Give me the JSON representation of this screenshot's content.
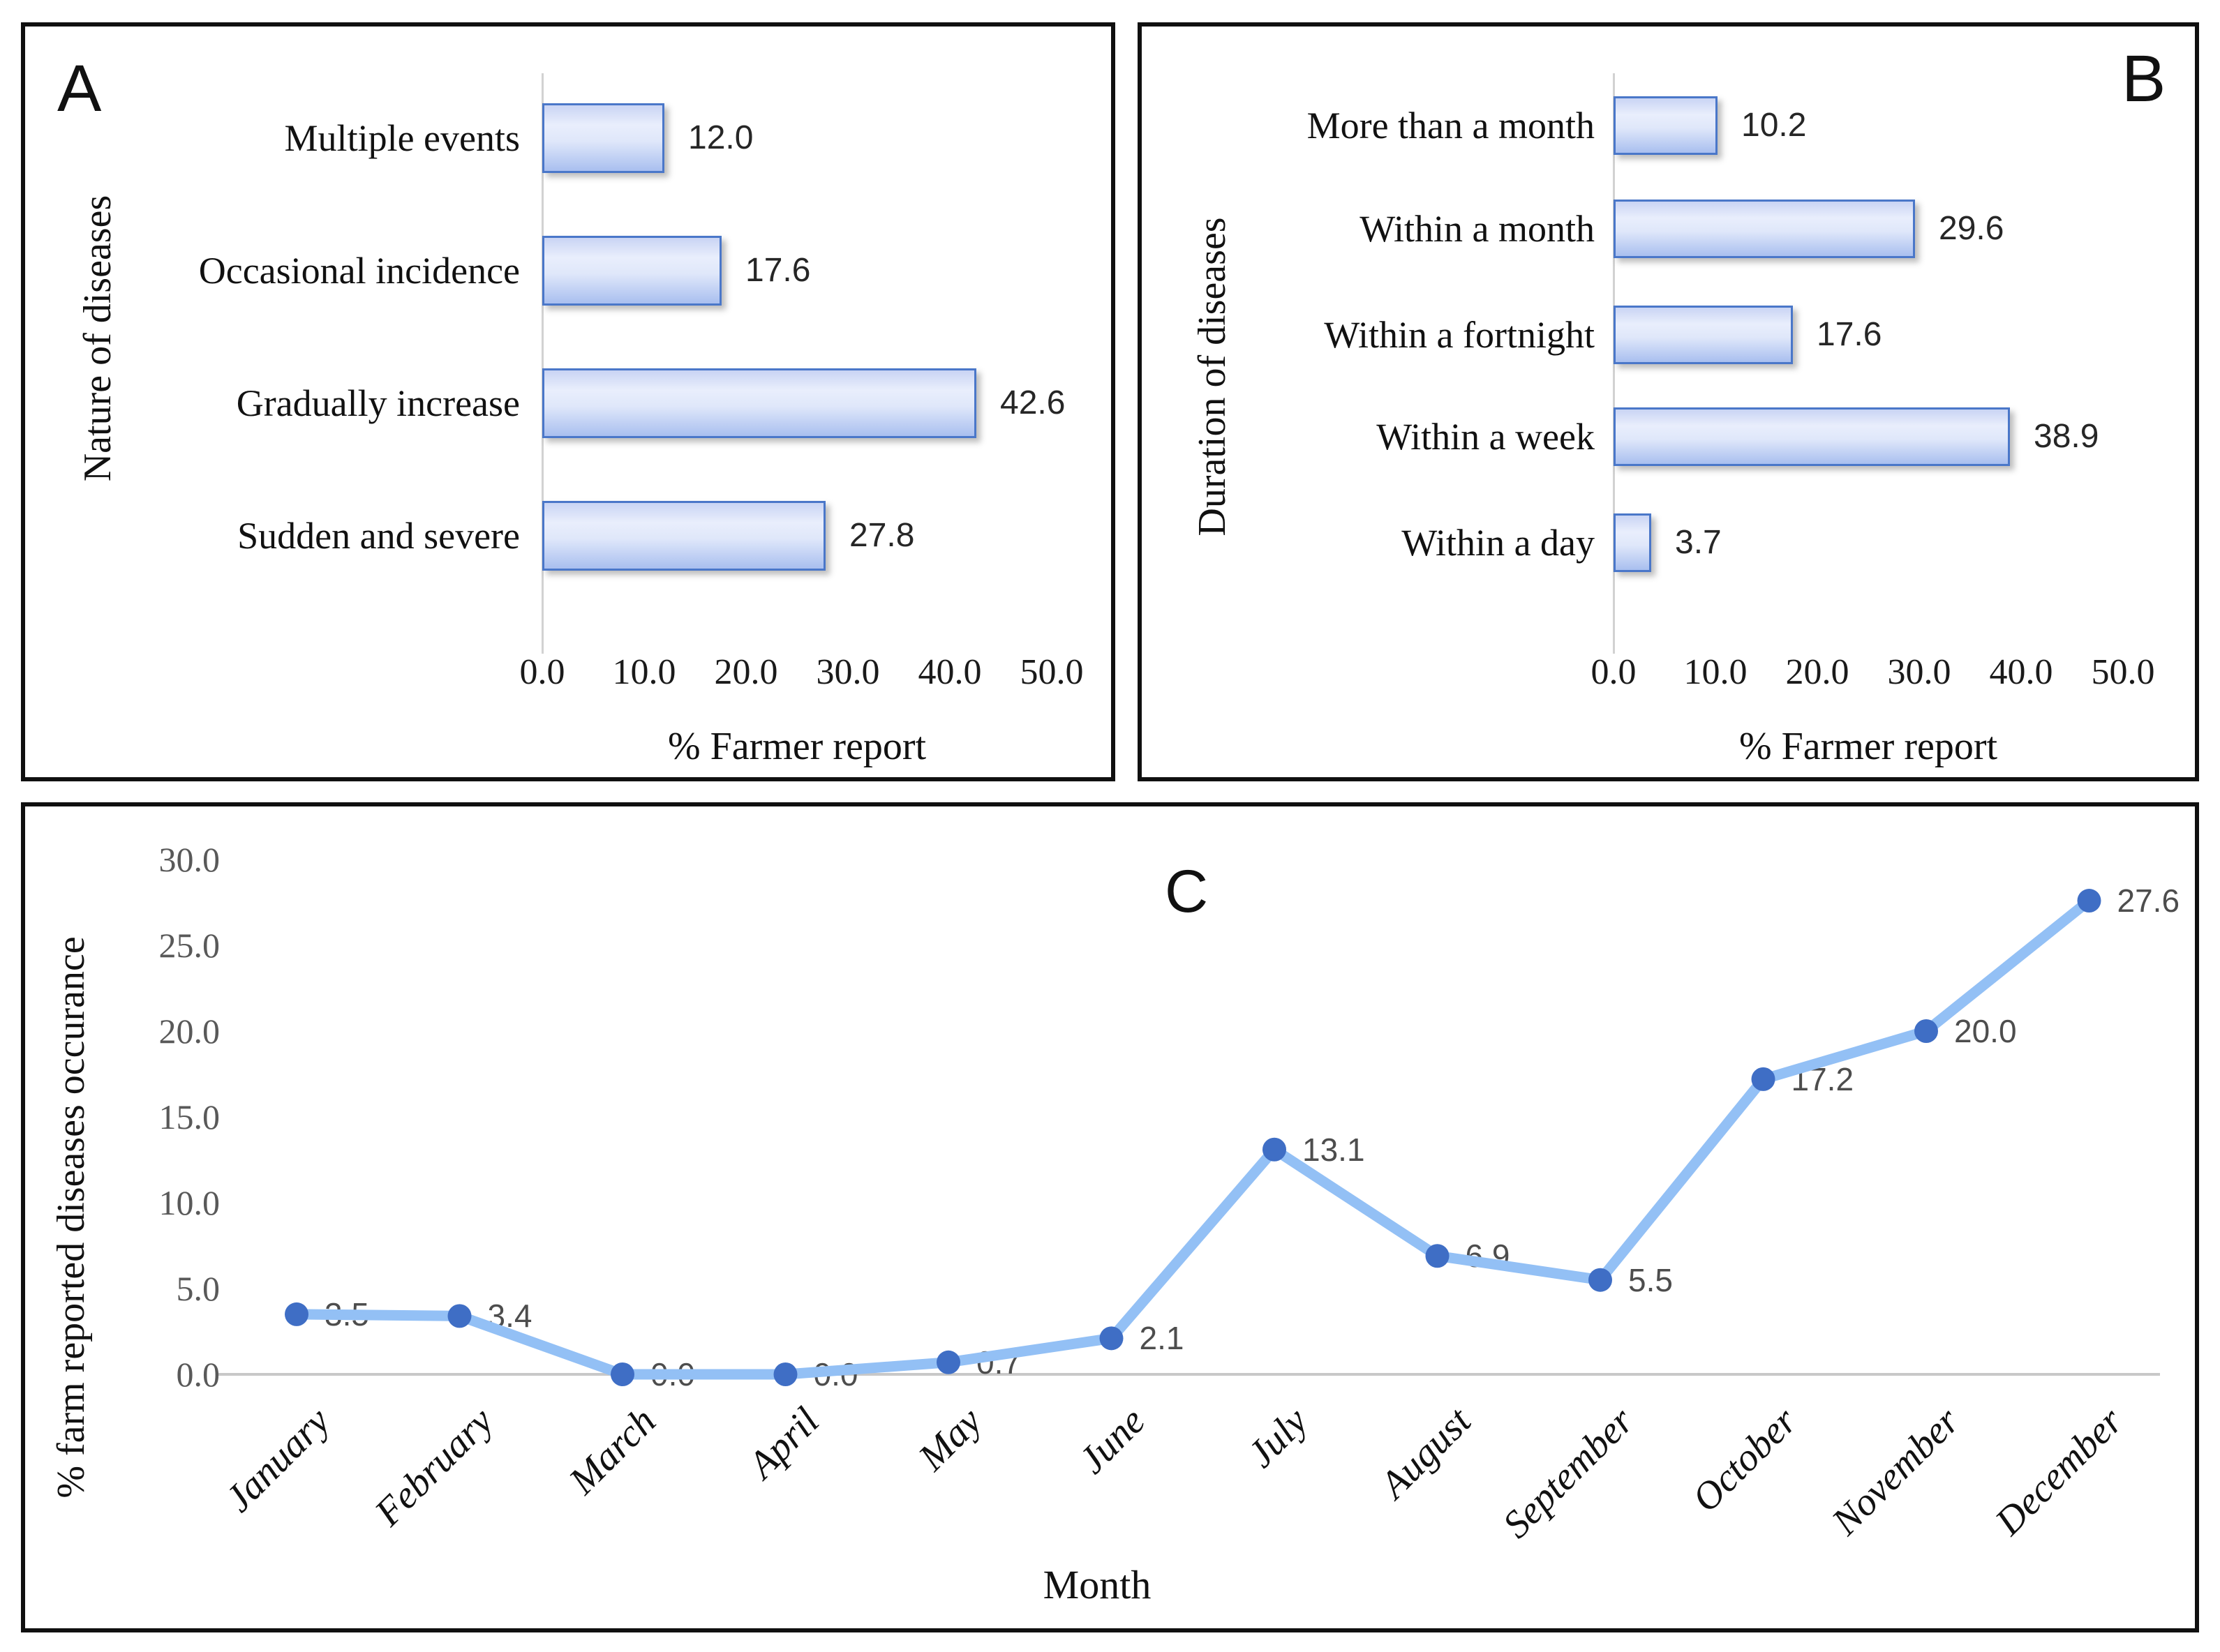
{
  "colors": {
    "bar_border": "#4a77c9",
    "bar_fill_light": "#e9eefc",
    "bar_fill_dark": "#a9bfef",
    "line": "#93c0f5",
    "marker": "#3f6ec5",
    "axis_gray": "#c8c8c8",
    "tick_gray": "#595959",
    "text_black": "#111111"
  },
  "chart_data": [
    {
      "id": "A",
      "type": "bar",
      "orientation": "horizontal",
      "panel_label": "A",
      "categories": [
        "Multiple events",
        "Occasional incidence",
        "Gradually increase",
        "Sudden and severe"
      ],
      "values": [
        12.0,
        17.6,
        42.6,
        27.8
      ],
      "value_labels": [
        "12.0",
        "17.6",
        "42.6",
        "27.8"
      ],
      "xlabel": "% Farmer report",
      "ylabel": "Nature of diseases",
      "x_ticks": [
        "0.0",
        "10.0",
        "20.0",
        "30.0",
        "40.0",
        "50.0"
      ],
      "xlim": [
        0,
        50
      ],
      "grid": false,
      "legend": "none"
    },
    {
      "id": "B",
      "type": "bar",
      "orientation": "horizontal",
      "panel_label": "B",
      "categories": [
        "More than a month",
        "Within a month",
        "Within a fortnight",
        "Within a week",
        "Within a day"
      ],
      "values": [
        10.2,
        29.6,
        17.6,
        38.9,
        3.7
      ],
      "value_labels": [
        "10.2",
        "29.6",
        "17.6",
        "38.9",
        "3.7"
      ],
      "xlabel": "% Farmer report",
      "ylabel": "Duration of diseases",
      "x_ticks": [
        "0.0",
        "10.0",
        "20.0",
        "30.0",
        "40.0",
        "50.0"
      ],
      "xlim": [
        0,
        50
      ],
      "grid": false,
      "legend": "none"
    },
    {
      "id": "C",
      "type": "line",
      "panel_label": "C",
      "categories": [
        "January",
        "February",
        "March",
        "April",
        "May",
        "June",
        "July",
        "August",
        "September",
        "October",
        "November",
        "December"
      ],
      "values": [
        3.5,
        3.4,
        0.0,
        0.0,
        0.7,
        2.1,
        13.1,
        6.9,
        5.5,
        17.2,
        20.0,
        27.6
      ],
      "value_labels": [
        "3.5",
        "3.4",
        "0.0",
        "0.0",
        "0.7",
        "2.1",
        "13.1",
        "6.9",
        "5.5",
        "17.2",
        "20.0",
        "27.6"
      ],
      "xlabel": "Month",
      "ylabel": "% farm reported diseases occurance",
      "y_ticks": [
        "0.0",
        "5.0",
        "10.0",
        "15.0",
        "20.0",
        "25.0",
        "30.0"
      ],
      "ylim": [
        0,
        30
      ],
      "grid": false,
      "legend": "none"
    }
  ]
}
